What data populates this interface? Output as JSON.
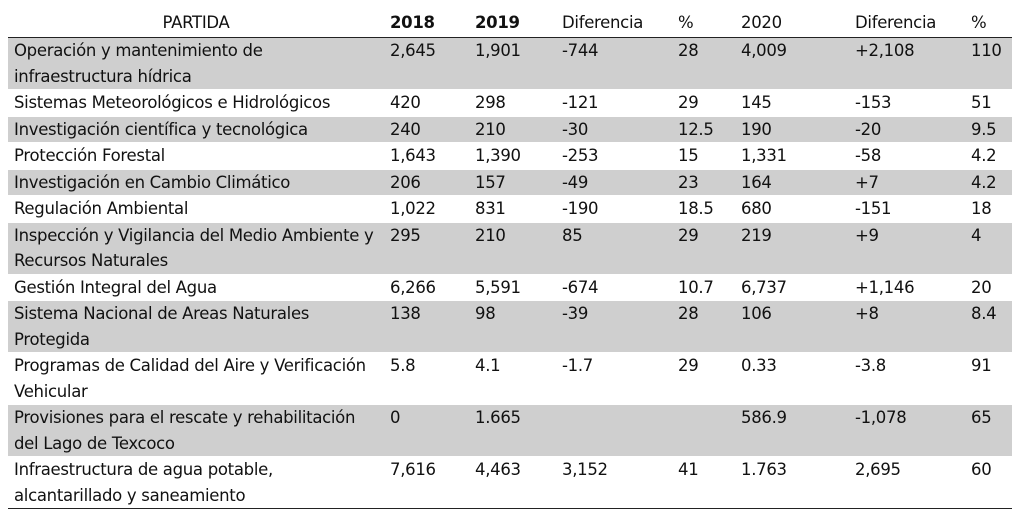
{
  "table": {
    "headers": [
      "PARTIDA",
      "2018",
      "2019",
      "Diferencia",
      "%",
      "2020",
      "Diferencia",
      "%"
    ],
    "rows": [
      {
        "partida": "Operación y mantenimiento de infraestructura hídrica",
        "y2018": "2,645",
        "y2019": "1,901",
        "dif1": "-744",
        "pct1": "28",
        "y2020": "4,009",
        "dif2": "+2,108",
        "pct2": "110"
      },
      {
        "partida": "Sistemas Meteorológicos e Hidrológicos",
        "y2018": "420",
        "y2019": "298",
        "dif1": "-121",
        "pct1": "29",
        "y2020": "145",
        "dif2": "-153",
        "pct2": "51"
      },
      {
        "partida": "Investigación científica y tecnológica",
        "y2018": "240",
        "y2019": "210",
        "dif1": "-30",
        "pct1": "12.5",
        "y2020": "190",
        "dif2": "-20",
        "pct2": "9.5"
      },
      {
        "partida": "Protección Forestal",
        "y2018": "1,643",
        "y2019": "1,390",
        "dif1": "-253",
        "pct1": "15",
        "y2020": "1,331",
        "dif2": "-58",
        "pct2": "4.2"
      },
      {
        "partida": "Investigación en Cambio Climático",
        "y2018": "206",
        "y2019": "157",
        "dif1": "-49",
        "pct1": "23",
        "y2020": "164",
        "dif2": "+7",
        "pct2": "4.2"
      },
      {
        "partida": "Regulación Ambiental",
        "y2018": "1,022",
        "y2019": "831",
        "dif1": "-190",
        "pct1": "18.5",
        "y2020": "680",
        "dif2": "-151",
        "pct2": "18"
      },
      {
        "partida": "Inspección y Vigilancia del Medio Ambiente y Recursos Naturales",
        "y2018": "295",
        "y2019": "210",
        "dif1": "85",
        "pct1": "29",
        "y2020": "219",
        "dif2": "+9",
        "pct2": "4"
      },
      {
        "partida": "Gestión Integral del Agua",
        "y2018": "6,266",
        "y2019": "5,591",
        "dif1": "-674",
        "pct1": "10.7",
        "y2020": "6,737",
        "dif2": "+1,146",
        "pct2": "20"
      },
      {
        "partida": "Sistema Nacional de Areas Naturales Protegida",
        "y2018": "138",
        "y2019": "98",
        "dif1": "-39",
        "pct1": "28",
        "y2020": "106",
        "dif2": "+8",
        "pct2": "8.4"
      },
      {
        "partida": "Programas de Calidad del Aire y Verificación Vehicular",
        "y2018": "5.8",
        "y2019": "4.1",
        "dif1": "-1.7",
        "pct1": "29",
        "y2020": "0.33",
        "dif2": "-3.8",
        "pct2": "91"
      },
      {
        "partida": "Provisiones para el rescate y rehabilitación del Lago de Texcoco",
        "y2018": "0",
        "y2019": "1.665",
        "dif1": "",
        "pct1": "",
        "y2020": "586.9",
        "dif2": "-1,078",
        "pct2": "65"
      },
      {
        "partida": "Infraestructura de agua potable, alcantarillado y saneamiento",
        "y2018": "7,616",
        "y2019": "4,463",
        "dif1": "3,152",
        "pct1": "41",
        "y2020": "1.763",
        "dif2": "2,695",
        "pct2": "60"
      }
    ]
  }
}
